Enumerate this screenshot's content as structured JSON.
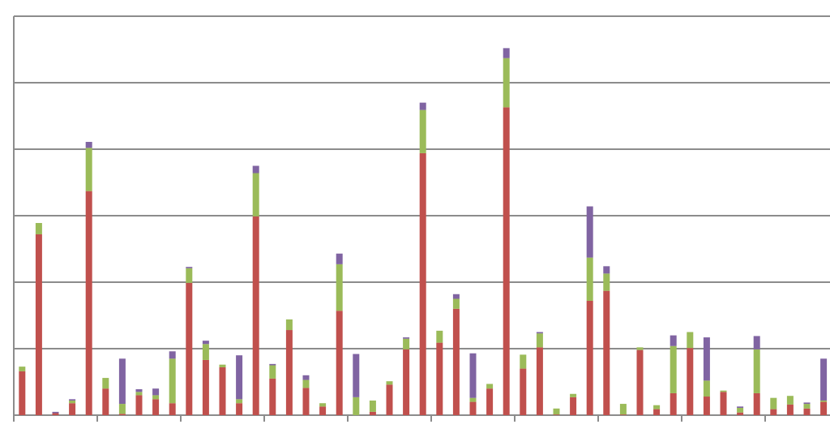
{
  "chart_data": {
    "type": "stacked_bar",
    "categories": [
      null,
      null,
      null,
      null,
      null,
      null,
      null,
      null,
      null,
      null,
      null,
      null,
      null,
      null,
      null,
      null,
      null,
      null,
      null,
      null,
      null,
      null,
      null,
      null,
      null,
      null,
      null,
      null,
      null,
      null,
      null,
      null,
      null,
      null,
      null,
      null,
      null,
      null,
      null,
      null,
      null,
      null,
      null,
      null,
      null,
      null,
      null,
      null,
      null
    ],
    "series": [
      {
        "color": "#c0504d",
        "values": [
          0.66,
          2.72,
          0.03,
          0.18,
          3.37,
          0.4,
          0.02,
          0.3,
          0.24,
          0.18,
          1.99,
          0.83,
          0.72,
          0.18,
          2.99,
          0.55,
          1.28,
          0.41,
          0.13,
          1.57,
          0,
          0.05,
          0.46,
          0.99,
          3.94,
          1.09,
          1.6,
          0.2,
          0.4,
          4.63,
          0.7,
          1.02,
          0.01,
          0.27,
          1.72,
          1.87,
          0.01,
          0.98,
          0.09,
          0.33,
          1.01,
          0.28,
          0.35,
          0.04,
          0.33,
          0.09,
          0.16,
          0.1,
          0.2
        ]
      },
      {
        "color": "#9bbb59",
        "values": [
          0.07,
          0.17,
          0,
          0.04,
          0.65,
          0.16,
          0.15,
          0.05,
          0.06,
          0.67,
          0.22,
          0.24,
          0.04,
          0.06,
          0.65,
          0.2,
          0.16,
          0.12,
          0.05,
          0.7,
          0.27,
          0.17,
          0.05,
          0.16,
          0.65,
          0.18,
          0.15,
          0.06,
          0.07,
          0.74,
          0.21,
          0.21,
          0.09,
          0.05,
          0.65,
          0.26,
          0.16,
          0.04,
          0.06,
          0.71,
          0.24,
          0.24,
          0.02,
          0.07,
          0.66,
          0.17,
          0.13,
          0.07,
          0.02
        ]
      },
      {
        "color": "#8064a2",
        "values": [
          0,
          0,
          0.02,
          0.02,
          0.09,
          0,
          0.68,
          0.04,
          0.1,
          0.11,
          0.02,
          0.05,
          0,
          0.66,
          0.11,
          0.02,
          0,
          0.07,
          0,
          0.16,
          0.65,
          0,
          0,
          0.02,
          0.11,
          0,
          0.07,
          0.67,
          0,
          0.15,
          0,
          0.02,
          0,
          0,
          0.77,
          0.11,
          0,
          0,
          0,
          0.16,
          0,
          0.65,
          0,
          0.02,
          0.2,
          0,
          0,
          0.02,
          0.63
        ]
      }
    ],
    "ylim": [
      0,
      6
    ],
    "yticks": [
      0,
      1,
      2,
      3,
      4,
      5,
      6
    ],
    "grid": true
  }
}
